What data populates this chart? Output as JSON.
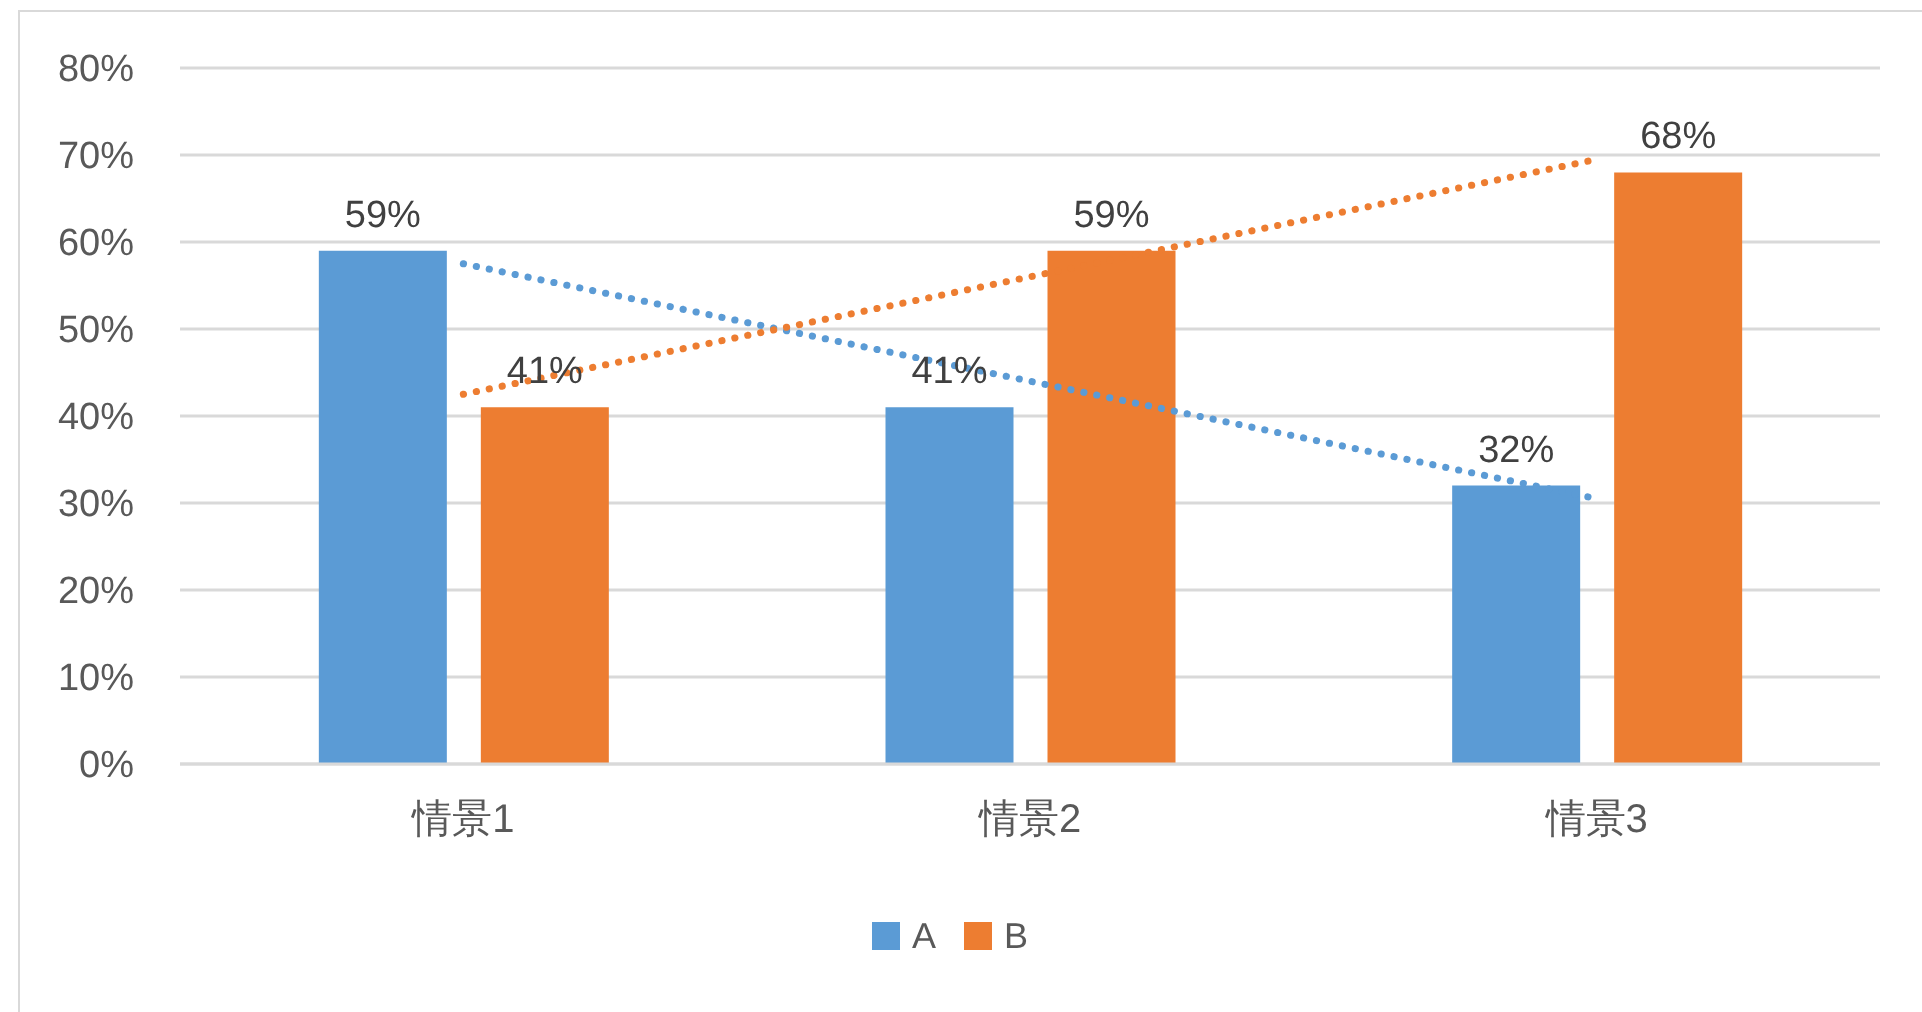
{
  "chart_data": {
    "type": "bar",
    "categories": [
      "情景1",
      "情景2",
      "情景3"
    ],
    "series": [
      {
        "name": "A",
        "color": "#5b9bd5",
        "values": [
          59,
          41,
          32
        ],
        "value_labels": [
          "59%",
          "41%",
          "32%"
        ]
      },
      {
        "name": "B",
        "color": "#ed7d31",
        "values": [
          41,
          59,
          68
        ],
        "value_labels": [
          "41%",
          "59%",
          "68%"
        ]
      },
      {
        "type": "line",
        "color": "#5b9bd5",
        "x": [
          "情景1",
          "情景2",
          "情景3"
        ],
        "values": [
          57.5,
          44,
          30.5
        ],
        "line_style": "dotted"
      },
      {
        "type": "line",
        "color": "#ed7d31",
        "x": [
          "情景1",
          "情景2",
          "情景3"
        ],
        "values": [
          42.5,
          56,
          69.5
        ],
        "line_style": "dotted"
      }
    ],
    "ylim": [
      0,
      80
    ],
    "yticks": [
      {
        "value": 0,
        "label": "0%"
      },
      {
        "value": 10,
        "label": "10%"
      },
      {
        "value": 20,
        "label": "20%"
      },
      {
        "value": 30,
        "label": "30%"
      },
      {
        "value": 40,
        "label": "40%"
      },
      {
        "value": 50,
        "label": "50%"
      },
      {
        "value": 60,
        "label": "60%"
      },
      {
        "value": 70,
        "label": "70%"
      },
      {
        "value": 80,
        "label": "80%"
      }
    ],
    "grid": "y",
    "legend": "bottom",
    "marker": "none"
  }
}
